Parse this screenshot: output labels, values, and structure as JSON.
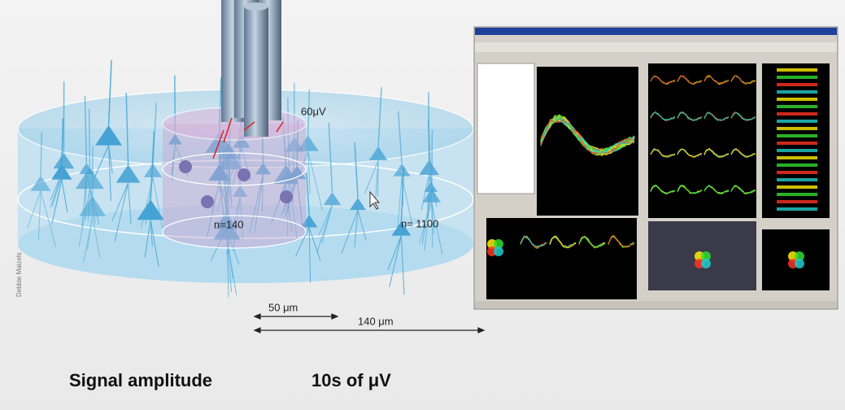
{
  "diagram": {
    "labels": {
      "amplitude_near": "60μV",
      "count_inner": "n=140",
      "count_outer": "n= 1100"
    },
    "scale": {
      "inner": "50 μm",
      "outer": "140 μm"
    },
    "credit": "Debbie Maizels",
    "caption": {
      "left": "Signal amplitude",
      "right": "10s of μV"
    }
  }
}
